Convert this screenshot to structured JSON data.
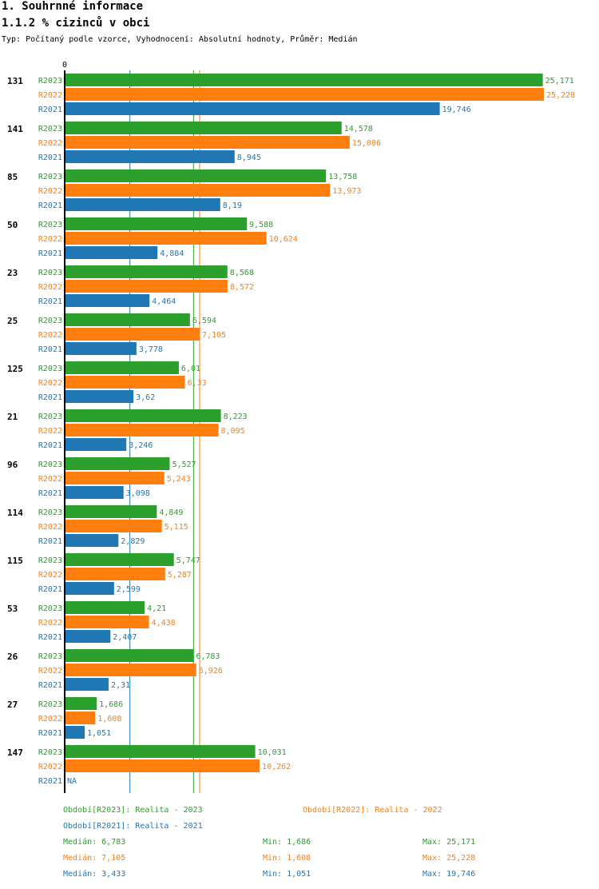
{
  "header": {
    "title": "1. Souhrnné informace",
    "subtitle": "1.1.2 % cizinců v obci",
    "meta": "Typ: Počítaný podle vzorce, Vyhodnocení: Absolutní hodnoty, Průměr: Medián"
  },
  "chart_data": {
    "type": "bar",
    "orientation": "horizontal",
    "axis_zero_label": "0",
    "xlim": [
      0,
      25.228
    ],
    "colors": {
      "R2023": "#2ca02c",
      "R2022": "#ff7f0e",
      "R2021": "#1f77b4"
    },
    "categories": [
      "131",
      "141",
      "85",
      "50",
      "23",
      "25",
      "125",
      "21",
      "96",
      "114",
      "115",
      "53",
      "26",
      "27",
      "147"
    ],
    "series": [
      {
        "name": "R2023",
        "values": [
          25.171,
          14.578,
          13.758,
          9.588,
          8.568,
          6.594,
          6.01,
          8.223,
          5.527,
          4.849,
          5.747,
          4.21,
          6.783,
          1.686,
          10.031
        ],
        "labels": [
          "25,171",
          "14,578",
          "13,758",
          "9,588",
          "8,568",
          "6,594",
          "6,01",
          "8,223",
          "5,527",
          "4,849",
          "5,747",
          "4,21",
          "6,783",
          "1,686",
          "10,031"
        ]
      },
      {
        "name": "R2022",
        "values": [
          25.228,
          15.006,
          13.973,
          10.624,
          8.572,
          7.105,
          6.33,
          8.095,
          5.243,
          5.115,
          5.287,
          4.438,
          6.926,
          1.608,
          10.262
        ],
        "labels": [
          "25,228",
          "15,006",
          "13,973",
          "10,624",
          "8,572",
          "7,105",
          "6,33",
          "8,095",
          "5,243",
          "5,115",
          "5,287",
          "4,438",
          "6,926",
          "1,608",
          "10,262"
        ]
      },
      {
        "name": "R2021",
        "values": [
          19.746,
          8.945,
          8.19,
          4.884,
          4.464,
          3.778,
          3.62,
          3.246,
          3.098,
          2.829,
          2.599,
          2.407,
          2.31,
          1.051,
          null
        ],
        "labels": [
          "19,746",
          "8,945",
          "8,19",
          "4,884",
          "4,464",
          "3,778",
          "3,62",
          "3,246",
          "3,098",
          "2,829",
          "2,599",
          "2,407",
          "2,31",
          "1,051",
          "NA"
        ]
      }
    ],
    "medians": {
      "R2023": 6.783,
      "R2022": 7.105,
      "R2021": 3.433
    }
  },
  "legend": {
    "r2023": "Období[R2023]: Realita - 2023",
    "r2022": "Období[R2022]: Realita - 2022",
    "r2021": "Období[R2021]: Realita - 2021"
  },
  "stats": [
    {
      "median": "Medián: 6,783",
      "min": "Min: 1,686",
      "max": "Max: 25,171"
    },
    {
      "median": "Medián: 7,105",
      "min": "Min: 1,608",
      "max": "Max: 25,228"
    },
    {
      "median": "Medián: 3,433",
      "min": "Min: 1,051",
      "max": "Max: 19,746"
    }
  ]
}
